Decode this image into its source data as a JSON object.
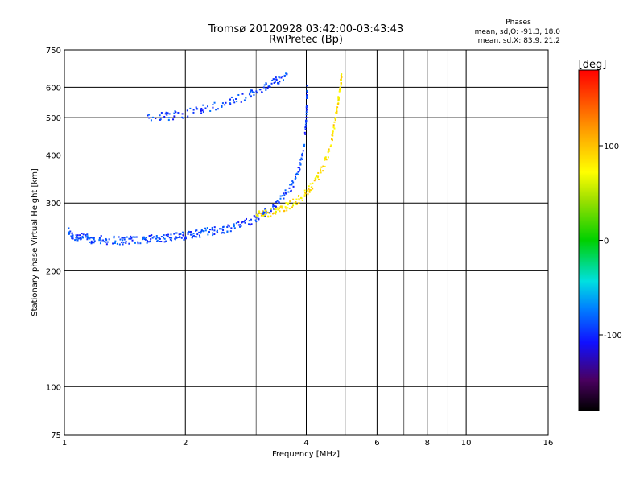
{
  "chart_data": {
    "type": "scatter",
    "title": "Tromsø 20120928 03:42:00-03:43:43",
    "subtitle": "RwPretec (Bp)",
    "xlabel": "Frequency [MHz]",
    "ylabel": "Stationary phase Virtual Height [km]",
    "x_scale": "log",
    "y_scale": "log",
    "xlim": [
      1,
      16
    ],
    "ylim": [
      75,
      750
    ],
    "x_ticks": [
      1,
      2,
      4,
      6,
      8,
      10,
      16
    ],
    "x_grid": [
      2,
      4,
      6,
      8,
      10
    ],
    "x_minor_grid": [
      3,
      5,
      7,
      9
    ],
    "y_ticks": [
      75,
      100,
      200,
      300,
      400,
      500,
      600,
      750
    ],
    "y_grid": [
      100,
      200,
      300,
      400,
      500,
      600
    ],
    "grid": true,
    "stats": {
      "header": "Phases",
      "line_o": "mean, sd,O: -91.3, 18.0",
      "line_x": "mean, sd,X:  83.9, 21.2"
    },
    "colorbar": {
      "label": "[deg]",
      "min": -180,
      "max": 180,
      "ticks": [
        100,
        0,
        -100
      ],
      "tick_labels": [
        "100",
        "0",
        "-100"
      ]
    },
    "traces": [
      {
        "mode": "O",
        "phase_mean": -91.3,
        "phase_sd": 18.0,
        "x": [
          1.02,
          1.05,
          1.1,
          1.15,
          1.2,
          1.3,
          1.4,
          1.5,
          1.6,
          1.7,
          1.8,
          1.9,
          2.0,
          2.1,
          2.2,
          2.35,
          2.5,
          2.7,
          2.9,
          3.1,
          3.3,
          3.5,
          3.7,
          3.85,
          3.95,
          4.0,
          4.02
        ],
        "y": [
          255,
          245,
          245,
          242,
          241,
          240,
          240,
          241,
          242,
          243,
          244,
          245,
          247,
          249,
          251,
          254,
          257,
          262,
          270,
          280,
          292,
          310,
          335,
          370,
          420,
          500,
          600
        ]
      },
      {
        "mode": "X",
        "phase_mean": 83.9,
        "phase_sd": 21.2,
        "x": [
          3.0,
          3.2,
          3.4,
          3.6,
          3.8,
          4.0,
          4.2,
          4.4,
          4.6,
          4.7,
          4.8,
          4.85,
          4.9
        ],
        "y": [
          278,
          282,
          288,
          295,
          305,
          318,
          340,
          370,
          420,
          480,
          550,
          600,
          640
        ]
      },
      {
        "mode": "O",
        "phase_mean": -91.3,
        "phase_sd": 18.0,
        "x": [
          1.6,
          1.8,
          2.0,
          2.2,
          2.5,
          2.8,
          3.0,
          3.2,
          3.4,
          3.6
        ],
        "y": [
          500,
          505,
          512,
          525,
          545,
          565,
          585,
          605,
          625,
          645
        ]
      }
    ]
  }
}
